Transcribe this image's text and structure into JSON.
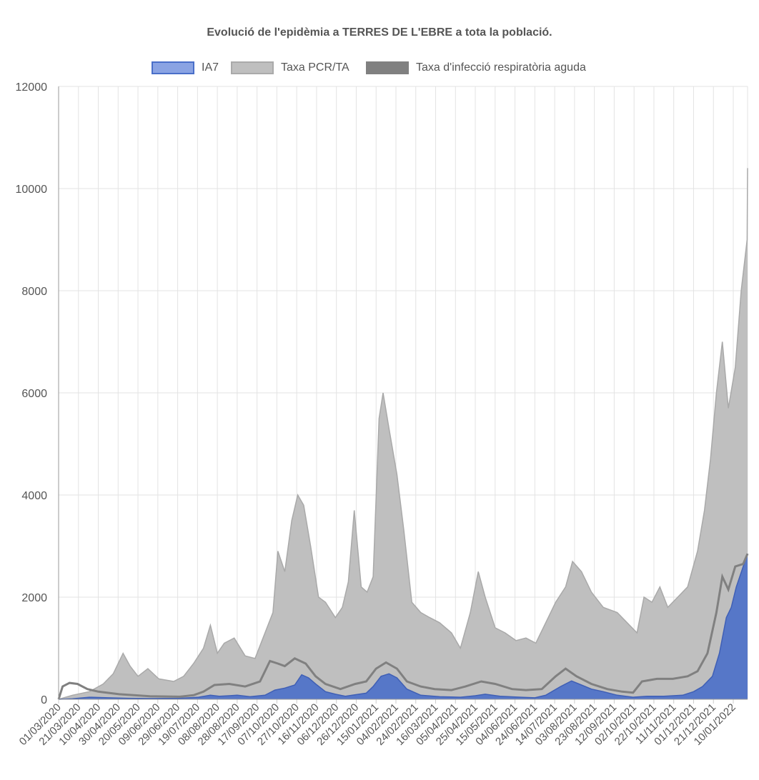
{
  "chart_data": {
    "type": "area",
    "title": "Evolució de l'epidèmia a TERRES DE L'EBRE a tota la població.",
    "xlabel": "",
    "ylabel": "",
    "ylim": [
      0,
      12000
    ],
    "yticks": [
      "0",
      "2000",
      "4000",
      "6000",
      "8000",
      "10000",
      "12000"
    ],
    "xticks": [
      "01/03/2020",
      "21/03/2020",
      "10/04/2020",
      "30/04/2020",
      "20/05/2020",
      "09/06/2020",
      "29/06/2020",
      "19/07/2020",
      "08/08/2020",
      "28/08/2020",
      "17/09/2020",
      "07/10/2020",
      "27/10/2020",
      "16/11/2020",
      "06/12/2020",
      "26/12/2020",
      "15/01/2021",
      "04/02/2021",
      "24/02/2021",
      "16/03/2021",
      "05/04/2021",
      "25/04/2021",
      "15/05/2021",
      "04/06/2021",
      "24/06/2021",
      "14/07/2021",
      "03/08/2021",
      "23/08/2021",
      "12/09/2021",
      "02/10/2021",
      "22/10/2021",
      "11/11/2021",
      "01/12/2021",
      "21/12/2021",
      "10/01/2022"
    ],
    "grid": true,
    "legend_position": "top",
    "series": [
      {
        "name": "IA7",
        "color": "#4a6fc9",
        "points": [
          [
            "01/03/2020",
            0
          ],
          [
            "15/03/2020",
            10
          ],
          [
            "01/04/2020",
            40
          ],
          [
            "20/04/2020",
            30
          ],
          [
            "10/05/2020",
            20
          ],
          [
            "01/06/2020",
            15
          ],
          [
            "01/07/2020",
            20
          ],
          [
            "20/07/2020",
            40
          ],
          [
            "01/08/2020",
            80
          ],
          [
            "10/08/2020",
            60
          ],
          [
            "20/08/2020",
            70
          ],
          [
            "28/08/2020",
            80
          ],
          [
            "10/09/2020",
            50
          ],
          [
            "25/09/2020",
            80
          ],
          [
            "05/10/2020",
            180
          ],
          [
            "15/10/2020",
            220
          ],
          [
            "25/10/2020",
            280
          ],
          [
            "01/11/2020",
            480
          ],
          [
            "08/11/2020",
            420
          ],
          [
            "15/11/2020",
            300
          ],
          [
            "25/11/2020",
            150
          ],
          [
            "05/12/2020",
            100
          ],
          [
            "15/12/2020",
            60
          ],
          [
            "25/12/2020",
            90
          ],
          [
            "05/01/2021",
            120
          ],
          [
            "12/01/2021",
            250
          ],
          [
            "20/01/2021",
            450
          ],
          [
            "28/01/2021",
            500
          ],
          [
            "05/02/2021",
            420
          ],
          [
            "15/02/2021",
            200
          ],
          [
            "01/03/2021",
            80
          ],
          [
            "20/03/2021",
            50
          ],
          [
            "10/04/2021",
            40
          ],
          [
            "25/04/2021",
            70
          ],
          [
            "05/05/2021",
            100
          ],
          [
            "20/05/2021",
            60
          ],
          [
            "10/06/2021",
            40
          ],
          [
            "24/06/2021",
            30
          ],
          [
            "05/07/2021",
            80
          ],
          [
            "20/07/2021",
            250
          ],
          [
            "31/07/2021",
            360
          ],
          [
            "10/08/2021",
            280
          ],
          [
            "20/08/2021",
            200
          ],
          [
            "01/09/2021",
            150
          ],
          [
            "15/09/2021",
            80
          ],
          [
            "01/10/2021",
            40
          ],
          [
            "15/10/2021",
            60
          ],
          [
            "01/11/2021",
            60
          ],
          [
            "20/11/2021",
            80
          ],
          [
            "01/12/2021",
            150
          ],
          [
            "10/12/2021",
            250
          ],
          [
            "20/12/2021",
            450
          ],
          [
            "27/12/2021",
            900
          ],
          [
            "03/01/2022",
            1600
          ],
          [
            "08/01/2022",
            1800
          ],
          [
            "13/01/2022",
            2200
          ],
          [
            "20/01/2022",
            2600
          ],
          [
            "27/01/2022",
            2850
          ]
        ]
      },
      {
        "name": "Taxa PCR/TA",
        "color": "#bfbfbf",
        "points": [
          [
            "01/03/2020",
            0
          ],
          [
            "15/03/2020",
            80
          ],
          [
            "01/04/2020",
            150
          ],
          [
            "15/04/2020",
            300
          ],
          [
            "25/04/2020",
            500
          ],
          [
            "05/05/2020",
            900
          ],
          [
            "12/05/2020",
            650
          ],
          [
            "20/05/2020",
            450
          ],
          [
            "30/05/2020",
            600
          ],
          [
            "10/06/2020",
            400
          ],
          [
            "25/06/2020",
            350
          ],
          [
            "05/07/2020",
            450
          ],
          [
            "15/07/2020",
            700
          ],
          [
            "25/07/2020",
            1000
          ],
          [
            "01/08/2020",
            1450
          ],
          [
            "08/08/2020",
            900
          ],
          [
            "15/08/2020",
            1100
          ],
          [
            "25/08/2020",
            1200
          ],
          [
            "05/09/2020",
            850
          ],
          [
            "15/09/2020",
            800
          ],
          [
            "25/09/2020",
            1300
          ],
          [
            "03/10/2020",
            1700
          ],
          [
            "08/10/2020",
            2900
          ],
          [
            "15/10/2020",
            2500
          ],
          [
            "22/10/2020",
            3500
          ],
          [
            "28/10/2020",
            4000
          ],
          [
            "03/11/2020",
            3800
          ],
          [
            "10/11/2020",
            3000
          ],
          [
            "18/11/2020",
            2000
          ],
          [
            "25/11/2020",
            1900
          ],
          [
            "05/12/2020",
            1600
          ],
          [
            "12/12/2020",
            1800
          ],
          [
            "18/12/2020",
            2300
          ],
          [
            "24/12/2020",
            3700
          ],
          [
            "31/12/2020",
            2200
          ],
          [
            "06/01/2021",
            2100
          ],
          [
            "12/01/2021",
            2400
          ],
          [
            "18/01/2021",
            5500
          ],
          [
            "22/01/2021",
            6000
          ],
          [
            "28/01/2021",
            5300
          ],
          [
            "05/02/2021",
            4400
          ],
          [
            "12/02/2021",
            3300
          ],
          [
            "20/02/2021",
            1900
          ],
          [
            "01/03/2021",
            1700
          ],
          [
            "10/03/2021",
            1600
          ],
          [
            "20/03/2021",
            1500
          ],
          [
            "01/04/2021",
            1300
          ],
          [
            "10/04/2021",
            1000
          ],
          [
            "20/04/2021",
            1700
          ],
          [
            "28/04/2021",
            2500
          ],
          [
            "05/05/2021",
            2000
          ],
          [
            "15/05/2021",
            1400
          ],
          [
            "25/05/2021",
            1300
          ],
          [
            "05/06/2021",
            1150
          ],
          [
            "15/06/2021",
            1200
          ],
          [
            "25/06/2021",
            1100
          ],
          [
            "05/07/2021",
            1500
          ],
          [
            "15/07/2021",
            1900
          ],
          [
            "25/07/2021",
            2200
          ],
          [
            "01/08/2021",
            2700
          ],
          [
            "10/08/2021",
            2500
          ],
          [
            "20/08/2021",
            2100
          ],
          [
            "01/09/2021",
            1800
          ],
          [
            "15/09/2021",
            1700
          ],
          [
            "25/09/2021",
            1500
          ],
          [
            "05/10/2021",
            1300
          ],
          [
            "12/10/2021",
            2000
          ],
          [
            "20/10/2021",
            1900
          ],
          [
            "28/10/2021",
            2200
          ],
          [
            "05/11/2021",
            1800
          ],
          [
            "15/11/2021",
            2000
          ],
          [
            "25/11/2021",
            2200
          ],
          [
            "05/12/2021",
            2900
          ],
          [
            "12/12/2021",
            3700
          ],
          [
            "18/12/2021",
            4700
          ],
          [
            "24/12/2021",
            6000
          ],
          [
            "30/12/2021",
            7000
          ],
          [
            "05/01/2022",
            5700
          ],
          [
            "12/01/2022",
            6500
          ],
          [
            "18/01/2022",
            8000
          ],
          [
            "24/01/2022",
            9000
          ],
          [
            "29/01/2022",
            10400
          ]
        ]
      },
      {
        "name": "Taxa d'infecció respiratòria aguda",
        "color": "#808080",
        "points": [
          [
            "01/03/2020",
            0
          ],
          [
            "05/03/2020",
            250
          ],
          [
            "12/03/2020",
            320
          ],
          [
            "20/03/2020",
            300
          ],
          [
            "30/03/2020",
            200
          ],
          [
            "10/04/2020",
            150
          ],
          [
            "01/05/2020",
            100
          ],
          [
            "01/06/2020",
            60
          ],
          [
            "01/07/2020",
            50
          ],
          [
            "15/07/2020",
            80
          ],
          [
            "25/07/2020",
            150
          ],
          [
            "05/08/2020",
            280
          ],
          [
            "20/08/2020",
            300
          ],
          [
            "05/09/2020",
            250
          ],
          [
            "20/09/2020",
            350
          ],
          [
            "30/09/2020",
            750
          ],
          [
            "08/10/2020",
            700
          ],
          [
            "15/10/2020",
            650
          ],
          [
            "25/10/2020",
            800
          ],
          [
            "05/11/2020",
            700
          ],
          [
            "15/11/2020",
            450
          ],
          [
            "25/11/2020",
            300
          ],
          [
            "10/12/2020",
            200
          ],
          [
            "25/12/2020",
            300
          ],
          [
            "05/01/2021",
            350
          ],
          [
            "15/01/2021",
            600
          ],
          [
            "25/01/2021",
            720
          ],
          [
            "05/02/2021",
            600
          ],
          [
            "15/02/2021",
            350
          ],
          [
            "01/03/2021",
            250
          ],
          [
            "15/03/2021",
            200
          ],
          [
            "01/04/2021",
            180
          ],
          [
            "15/04/2021",
            250
          ],
          [
            "01/05/2021",
            350
          ],
          [
            "15/05/2021",
            300
          ],
          [
            "01/06/2021",
            200
          ],
          [
            "15/06/2021",
            180
          ],
          [
            "01/07/2021",
            200
          ],
          [
            "15/07/2021",
            450
          ],
          [
            "25/07/2021",
            600
          ],
          [
            "05/08/2021",
            450
          ],
          [
            "20/08/2021",
            300
          ],
          [
            "05/09/2021",
            200
          ],
          [
            "20/09/2021",
            150
          ],
          [
            "01/10/2021",
            130
          ],
          [
            "10/10/2021",
            350
          ],
          [
            "25/10/2021",
            400
          ],
          [
            "10/11/2021",
            400
          ],
          [
            "25/11/2021",
            450
          ],
          [
            "05/12/2021",
            550
          ],
          [
            "15/12/2021",
            900
          ],
          [
            "24/12/2021",
            1700
          ],
          [
            "30/12/2021",
            2400
          ],
          [
            "05/01/2022",
            2150
          ],
          [
            "12/01/2022",
            2600
          ],
          [
            "20/01/2022",
            2650
          ],
          [
            "27/01/2022",
            2850
          ]
        ]
      }
    ]
  }
}
